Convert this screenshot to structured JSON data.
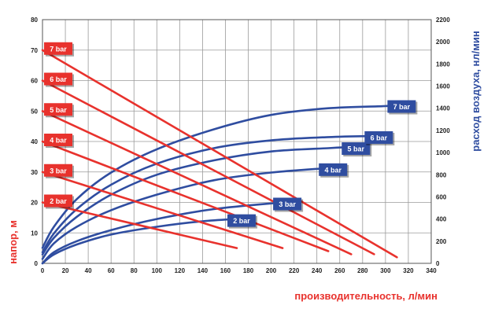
{
  "chart_data": {
    "type": "line",
    "xlabel": "производительность, л/мин",
    "ylabel_left": "напор, м",
    "ylabel_right": "расход воздуха, нл/мин",
    "x_ticks": [
      "0",
      "20",
      "40",
      "60",
      "80",
      "100",
      "120",
      "140",
      "160",
      "180",
      "200",
      "220",
      "240",
      "260",
      "280",
      "300",
      "320",
      "340"
    ],
    "y_left_ticks": [
      "0",
      "10",
      "20",
      "30",
      "40",
      "50",
      "60",
      "70",
      "80"
    ],
    "y_right_ticks": [
      "0",
      "200",
      "400",
      "600",
      "800",
      "1000",
      "1200",
      "1400",
      "1600",
      "1800",
      "2000",
      "2200"
    ],
    "xlim": [
      0,
      340
    ],
    "ylim_left": [
      0,
      80
    ],
    "ylim_right": [
      0,
      2200
    ],
    "grid": true,
    "colors": {
      "head": "#e8322d",
      "air": "#2f4da0",
      "grid": "#9a9a9a"
    },
    "head_series": [
      {
        "name": "2 bar",
        "x": [
          0,
          170
        ],
        "y": [
          20,
          5
        ]
      },
      {
        "name": "3 bar",
        "x": [
          0,
          210
        ],
        "y": [
          30,
          5
        ]
      },
      {
        "name": "4 bar",
        "x": [
          0,
          250
        ],
        "y": [
          40,
          4
        ]
      },
      {
        "name": "5 bar",
        "x": [
          0,
          270
        ],
        "y": [
          50,
          3
        ]
      },
      {
        "name": "6 bar",
        "x": [
          0,
          290
        ],
        "y": [
          60,
          3
        ]
      },
      {
        "name": "7 bar",
        "x": [
          0,
          310
        ],
        "y": [
          70,
          2
        ]
      }
    ],
    "air_series": [
      {
        "name": "2 bar",
        "x": [
          0,
          10,
          30,
          60,
          100,
          140,
          170
        ],
        "y": [
          0,
          80,
          170,
          260,
          330,
          380,
          400
        ]
      },
      {
        "name": "3 bar",
        "x": [
          0,
          10,
          30,
          60,
          100,
          150,
          210
        ],
        "y": [
          0,
          100,
          200,
          300,
          400,
          490,
          550
        ]
      },
      {
        "name": "4 bar",
        "x": [
          0,
          10,
          30,
          60,
          100,
          150,
          200,
          250
        ],
        "y": [
          40,
          180,
          330,
          480,
          620,
          750,
          820,
          860
        ]
      },
      {
        "name": "5 bar",
        "x": [
          0,
          10,
          30,
          60,
          100,
          150,
          200,
          250,
          270
        ],
        "y": [
          80,
          230,
          420,
          620,
          800,
          930,
          1010,
          1040,
          1050
        ]
      },
      {
        "name": "6 bar",
        "x": [
          0,
          10,
          30,
          60,
          100,
          150,
          200,
          250,
          290
        ],
        "y": [
          100,
          270,
          490,
          710,
          900,
          1040,
          1110,
          1140,
          1150
        ]
      },
      {
        "name": "7 bar",
        "x": [
          0,
          10,
          30,
          60,
          100,
          150,
          200,
          250,
          300,
          310
        ],
        "y": [
          140,
          330,
          580,
          820,
          1030,
          1210,
          1340,
          1400,
          1420,
          1430
        ]
      }
    ]
  }
}
